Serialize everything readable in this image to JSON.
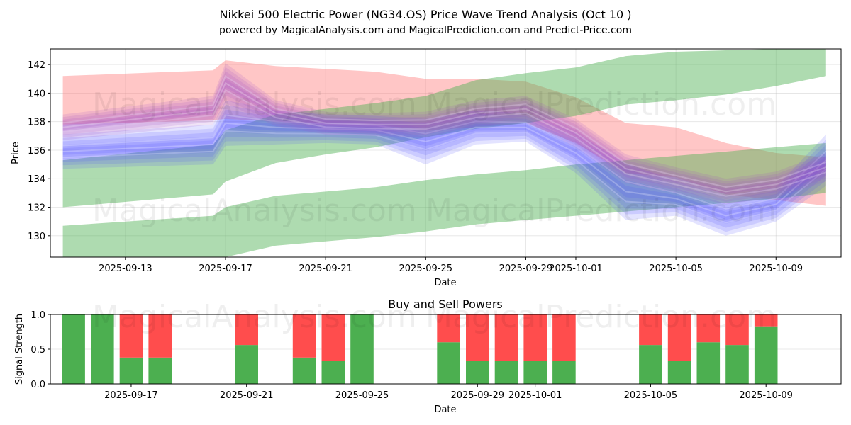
{
  "header": {
    "title": "Nikkei 500 Electric Power (NG34.OS) Price Wave Trend Analysis (Oct 10 )",
    "subtitle": "powered by MagicalAnalysis.com and MagicalPrediction.com and Predict-Price.com"
  },
  "watermarks": [
    "MagicalAnalysis.com",
    "MagicalPrediction.com"
  ],
  "chart_data": [
    {
      "type": "area",
      "title": "Price Wave Trend Analysis",
      "xlabel": "Date",
      "ylabel": "Price",
      "ylim": [
        128.5,
        143.1
      ],
      "xlim": [
        "2025-09-10",
        "2025-10-11.6"
      ],
      "x_ticks": [
        "2025-09-13",
        "2025-09-17",
        "2025-09-21",
        "2025-09-25",
        "2025-09-29",
        "2025-10-01",
        "2025-10-05",
        "2025-10-09"
      ],
      "y_ticks": [
        130,
        132,
        134,
        136,
        138,
        140,
        142
      ],
      "grid": true,
      "colors": {
        "red": "#ff6b6b",
        "green": "#4caf50",
        "blue": "#6a6aff",
        "brown": "#8b6a3a"
      },
      "x": [
        "2025-09-10.5",
        "2025-09-16.5",
        "2025-09-17",
        "2025-09-19",
        "2025-09-21",
        "2025-09-23",
        "2025-09-25",
        "2025-09-27",
        "2025-09-29",
        "2025-10-01",
        "2025-10-03",
        "2025-10-05",
        "2025-10-07",
        "2025-10-09",
        "2025-10-11"
      ],
      "series": [
        {
          "name": "red-band",
          "color": "#ff8080",
          "upper": [
            141.2,
            141.6,
            142.3,
            141.9,
            141.7,
            141.5,
            141.0,
            141.0,
            140.8,
            139.7,
            137.9,
            137.6,
            136.5,
            135.8,
            135.5
          ],
          "lower": [
            137.8,
            138.1,
            138.2,
            138.0,
            137.9,
            137.8,
            137.4,
            137.6,
            137.9,
            136.5,
            134.4,
            134.1,
            132.9,
            132.5,
            132.1
          ]
        },
        {
          "name": "green-upper-band",
          "color": "#4caf50",
          "upper": [
            135.3,
            136.4,
            137.4,
            138.5,
            138.9,
            139.3,
            139.8,
            140.9,
            141.4,
            141.8,
            142.6,
            142.9,
            143.0,
            143.1,
            143.1
          ],
          "lower": [
            132.0,
            132.9,
            133.8,
            135.1,
            135.7,
            136.2,
            136.9,
            137.5,
            137.9,
            138.4,
            139.2,
            139.5,
            139.9,
            140.5,
            141.2
          ]
        },
        {
          "name": "green-lower-band",
          "color": "#4caf50",
          "upper": [
            130.7,
            131.4,
            132.0,
            132.8,
            133.1,
            133.4,
            133.9,
            134.3,
            134.6,
            135.0,
            135.3,
            135.6,
            135.9,
            136.2,
            136.5
          ],
          "lower": [
            128.5,
            128.5,
            128.5,
            129.3,
            129.6,
            129.9,
            130.3,
            130.8,
            131.1,
            131.4,
            131.7,
            132.0,
            132.3,
            132.6,
            133.0
          ]
        },
        {
          "name": "blue-wave",
          "color": "#5050ff",
          "mid": [
            135.9,
            136.4,
            137.9,
            137.6,
            137.5,
            137.4,
            136.6,
            137.6,
            137.6,
            135.8,
            133.1,
            132.6,
            131.4,
            132.2,
            135.3
          ],
          "spread": [
            1.2,
            1.4,
            1.6,
            1.2,
            1.0,
            1.0,
            1.6,
            1.2,
            1.0,
            1.4,
            2.0,
            1.2,
            1.4,
            1.2,
            1.8
          ]
        },
        {
          "name": "purple-wave",
          "color": "#a050c8",
          "mid": [
            137.6,
            138.8,
            140.7,
            138.6,
            137.9,
            137.8,
            137.8,
            138.6,
            138.9,
            137.2,
            134.7,
            133.9,
            133.1,
            133.6,
            134.8
          ],
          "spread": [
            0.9,
            1.0,
            1.4,
            0.9,
            0.8,
            0.8,
            0.9,
            0.9,
            0.9,
            1.0,
            1.0,
            0.9,
            0.9,
            0.9,
            1.0
          ]
        }
      ]
    },
    {
      "type": "bar",
      "title": "Buy and Sell Powers",
      "xlabel": "Date",
      "ylabel": "Signal Strength",
      "ylim": [
        0,
        1.0
      ],
      "y_ticks": [
        "0.0",
        "0.5",
        "1.0"
      ],
      "x_ticks": [
        "2025-09-17",
        "2025-09-21",
        "2025-09-25",
        "2025-09-29",
        "2025-10-01",
        "2025-10-05",
        "2025-10-09"
      ],
      "xlim": [
        "2025-09-14.2",
        "2025-10-11.6"
      ],
      "grid": true,
      "colors": {
        "buy": "#4caf50",
        "sell": "#ff4d4d"
      },
      "dates": [
        "2025-09-15",
        "2025-09-16",
        "2025-09-17",
        "2025-09-18",
        "2025-09-21",
        "2025-09-23",
        "2025-09-24",
        "2025-09-25",
        "2025-09-28",
        "2025-09-29",
        "2025-09-30",
        "2025-10-01",
        "2025-10-02",
        "2025-10-05",
        "2025-10-06",
        "2025-10-07",
        "2025-10-08",
        "2025-10-09"
      ],
      "buy": [
        1.0,
        1.0,
        0.38,
        0.38,
        0.56,
        0.38,
        0.33,
        1.0,
        0.6,
        0.33,
        0.33,
        0.33,
        0.33,
        0.56,
        0.33,
        0.6,
        0.56,
        0.83
      ],
      "sell": [
        0.0,
        0.0,
        0.62,
        0.62,
        0.44,
        0.62,
        0.67,
        0.0,
        0.4,
        0.67,
        0.67,
        0.67,
        0.67,
        0.44,
        0.67,
        0.4,
        0.44,
        0.17
      ]
    }
  ]
}
